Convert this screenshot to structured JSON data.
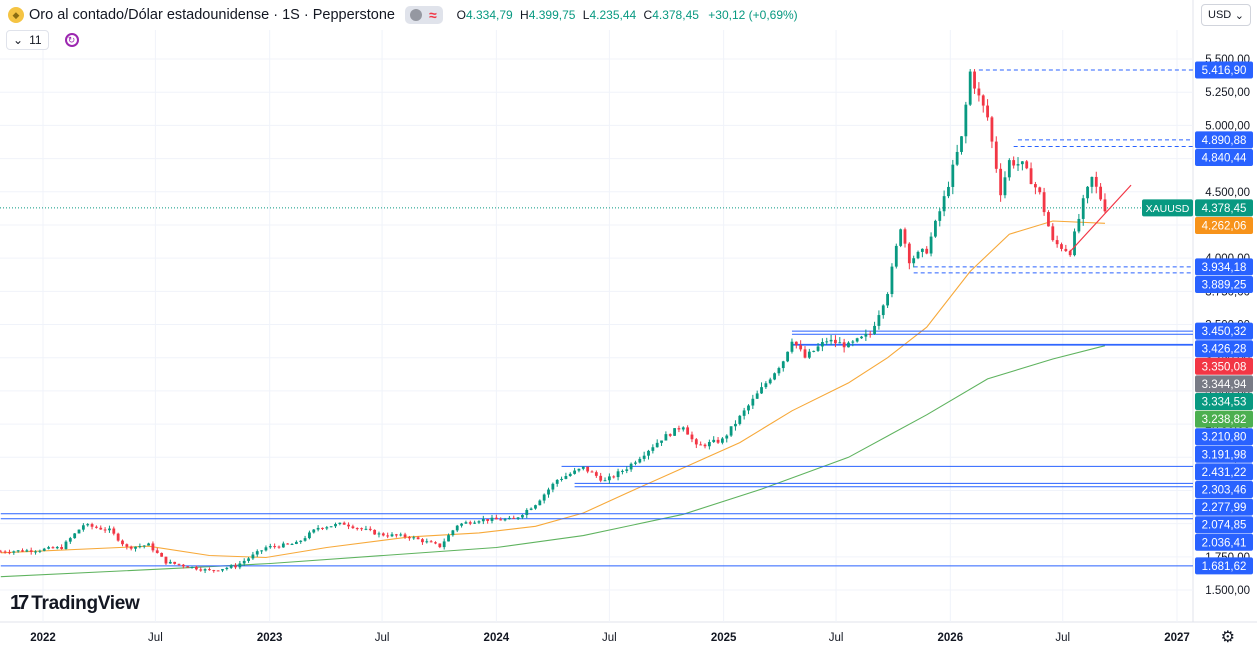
{
  "header": {
    "symbol_title": "Oro al contado/Dólar estadounidense · 1S · Pepperstone",
    "open_label": "O",
    "open": "4.334,79",
    "high_label": "H",
    "high": "4.399,75",
    "low_label": "L",
    "low": "4.235,44",
    "close_label": "C",
    "close": "4.378,45",
    "change": "+30,12 (+0,69%)",
    "indicators_count": "11",
    "currency": "USD"
  },
  "branding": {
    "logo_text": "TradingView"
  },
  "colors": {
    "up": "#089981",
    "down": "#f23645",
    "ema_short": "#f7a93a",
    "ema_long": "#5fb35f",
    "trend": "#f23645",
    "level": "#2962ff"
  },
  "chart_data": {
    "type": "candlestick",
    "title": "",
    "xlabel": "",
    "ylabel": "",
    "ylim": [
      1400,
      5600
    ],
    "x_range": [
      "2021-10-25",
      "2027-02-15"
    ],
    "grid": true,
    "y_ticks": [
      {
        "v": 5500,
        "label": "5.500,00"
      },
      {
        "v": 5250,
        "label": "5.250,00"
      },
      {
        "v": 5000,
        "label": "5.000,00"
      },
      {
        "v": 4750,
        "label": "4.750,00"
      },
      {
        "v": 4500,
        "label": "4.500,00"
      },
      {
        "v": 4250,
        "label": "4.250,00"
      },
      {
        "v": 4000,
        "label": "4.000,00"
      },
      {
        "v": 3750,
        "label": "3.750,00"
      },
      {
        "v": 3500,
        "label": "3.500,00"
      },
      {
        "v": 3250,
        "label": "3.250,00"
      },
      {
        "v": 3000,
        "label": "3.000,00"
      },
      {
        "v": 2750,
        "label": "2.750,00"
      },
      {
        "v": 2500,
        "label": "2.500,00"
      },
      {
        "v": 2250,
        "label": "2.250,00"
      },
      {
        "v": 2000,
        "label": "2.000,00"
      },
      {
        "v": 1750,
        "label": "1.750,00"
      },
      {
        "v": 1500,
        "label": "1.500,00"
      }
    ],
    "x_ticks": [
      {
        "date": "2022-01-01",
        "label": "2022",
        "bold": true
      },
      {
        "date": "2022-07-01",
        "label": "Jul",
        "bold": false
      },
      {
        "date": "2023-01-01",
        "label": "2023",
        "bold": true
      },
      {
        "date": "2023-07-01",
        "label": "Jul",
        "bold": false
      },
      {
        "date": "2024-01-01",
        "label": "2024",
        "bold": true
      },
      {
        "date": "2024-07-01",
        "label": "Jul",
        "bold": false
      },
      {
        "date": "2025-01-01",
        "label": "2025",
        "bold": true
      },
      {
        "date": "2025-07-01",
        "label": "Jul",
        "bold": false
      },
      {
        "date": "2026-01-01",
        "label": "2026",
        "bold": true
      },
      {
        "date": "2026-07-01",
        "label": "Jul",
        "bold": false
      },
      {
        "date": "2027-01-01",
        "label": "2027",
        "bold": true
      }
    ],
    "price_path": [
      [
        "2021-10-25",
        1790
      ],
      [
        "2021-12-20",
        1800
      ],
      [
        "2022-01-31",
        1820
      ],
      [
        "2022-03-07",
        1990
      ],
      [
        "2022-04-18",
        1950
      ],
      [
        "2022-05-16",
        1820
      ],
      [
        "2022-06-20",
        1840
      ],
      [
        "2022-07-18",
        1710
      ],
      [
        "2022-09-26",
        1645
      ],
      [
        "2022-11-07",
        1680
      ],
      [
        "2022-12-26",
        1820
      ],
      [
        "2023-02-13",
        1850
      ],
      [
        "2023-03-20",
        1970
      ],
      [
        "2023-05-01",
        2000
      ],
      [
        "2023-06-26",
        1920
      ],
      [
        "2023-08-14",
        1900
      ],
      [
        "2023-10-02",
        1830
      ],
      [
        "2023-10-30",
        1990
      ],
      [
        "2023-12-04",
        2030
      ],
      [
        "2024-01-29",
        2030
      ],
      [
        "2024-03-04",
        2150
      ],
      [
        "2024-04-08",
        2330
      ],
      [
        "2024-05-20",
        2420
      ],
      [
        "2024-06-24",
        2320
      ],
      [
        "2024-07-29",
        2420
      ],
      [
        "2024-09-23",
        2640
      ],
      [
        "2024-10-28",
        2740
      ],
      [
        "2024-11-18",
        2580
      ],
      [
        "2024-12-30",
        2630
      ],
      [
        "2025-02-17",
        2930
      ],
      [
        "2025-04-07",
        3230
      ],
      [
        "2025-04-21",
        3390
      ],
      [
        "2025-05-12",
        3250
      ],
      [
        "2025-06-16",
        3380
      ],
      [
        "2025-07-21",
        3340
      ],
      [
        "2025-08-25",
        3430
      ],
      [
        "2025-09-22",
        3750
      ],
      [
        "2025-10-13",
        4240
      ],
      [
        "2025-10-27",
        3990
      ],
      [
        "2025-11-24",
        4060
      ],
      [
        "2025-12-22",
        4450
      ],
      [
        "2026-01-19",
        4900
      ],
      [
        "2026-02-02",
        5400
      ],
      [
        "2026-02-16",
        5210
      ],
      [
        "2026-03-02",
        5060
      ],
      [
        "2026-03-23",
        4500
      ],
      [
        "2026-04-06",
        4730
      ],
      [
        "2026-04-27",
        4700
      ],
      [
        "2026-05-25",
        4480
      ],
      [
        "2026-06-15",
        4120
      ],
      [
        "2026-07-13",
        4050
      ],
      [
        "2026-08-03",
        4420
      ],
      [
        "2026-08-17",
        4600
      ],
      [
        "2026-09-07",
        4378
      ]
    ],
    "ema_short": [
      [
        "2021-10-25",
        1780
      ],
      [
        "2022-06-20",
        1830
      ],
      [
        "2022-09-26",
        1760
      ],
      [
        "2022-12-26",
        1745
      ],
      [
        "2023-04-03",
        1820
      ],
      [
        "2023-08-14",
        1900
      ],
      [
        "2023-12-04",
        1930
      ],
      [
        "2024-03-04",
        1980
      ],
      [
        "2024-05-20",
        2080
      ],
      [
        "2024-07-29",
        2230
      ],
      [
        "2024-10-28",
        2420
      ],
      [
        "2025-01-27",
        2610
      ],
      [
        "2025-04-21",
        2850
      ],
      [
        "2025-07-21",
        3060
      ],
      [
        "2025-09-22",
        3250
      ],
      [
        "2025-11-24",
        3480
      ],
      [
        "2026-02-02",
        3900
      ],
      [
        "2026-04-06",
        4180
      ],
      [
        "2026-06-15",
        4280
      ],
      [
        "2026-09-07",
        4262
      ]
    ],
    "ema_long": [
      [
        "2021-10-25",
        1600
      ],
      [
        "2022-07-18",
        1660
      ],
      [
        "2023-01-02",
        1700
      ],
      [
        "2023-07-03",
        1760
      ],
      [
        "2024-01-01",
        1820
      ],
      [
        "2024-05-20",
        1910
      ],
      [
        "2024-10-28",
        2070
      ],
      [
        "2025-03-03",
        2260
      ],
      [
        "2025-07-21",
        2500
      ],
      [
        "2025-11-24",
        2820
      ],
      [
        "2026-03-02",
        3090
      ],
      [
        "2026-06-15",
        3240
      ],
      [
        "2026-09-07",
        3340
      ]
    ],
    "trendline": [
      [
        "2026-07-13",
        4050
      ],
      [
        "2026-10-19",
        4550
      ]
    ],
    "current_price": 4378.45,
    "horizontal_levels": [
      {
        "value": 5416.9,
        "style": "dashed",
        "from": "2026-02-16"
      },
      {
        "value": 4890.88,
        "style": "dashed",
        "from": "2026-04-20"
      },
      {
        "value": 4840.44,
        "style": "dashed",
        "from": "2026-04-13"
      },
      {
        "value": 3934.18,
        "style": "dashed",
        "from": "2025-11-03"
      },
      {
        "value": 3889.25,
        "style": "dashed",
        "from": "2025-11-03"
      },
      {
        "value": 3450.32,
        "style": "solid",
        "from": "2025-04-21"
      },
      {
        "value": 3426.28,
        "style": "solid",
        "from": "2025-04-21"
      },
      {
        "value": 3350.08,
        "style": "solid",
        "from": "2025-04-21"
      },
      {
        "value": 3344.94,
        "style": "solid",
        "from": "2025-04-21"
      },
      {
        "value": 2431.22,
        "style": "solid",
        "from": "2024-04-15"
      },
      {
        "value": 2303.46,
        "style": "solid",
        "from": "2024-05-06"
      },
      {
        "value": 2277.99,
        "style": "solid",
        "from": "2024-05-06"
      },
      {
        "value": 2074.85,
        "style": "solid",
        "from": "2021-10-25"
      },
      {
        "value": 2036.41,
        "style": "solid",
        "from": "2021-10-25"
      },
      {
        "value": 1681.62,
        "style": "solid",
        "from": "2021-10-25"
      }
    ],
    "price_labels": [
      {
        "text": "5.416,90",
        "value": 5416.9,
        "color": "#2962ff"
      },
      {
        "text": "4.890,88",
        "value": 4890.88,
        "color": "#2962ff"
      },
      {
        "text": "4.840,44",
        "value": 4840.44,
        "color": "#2962ff"
      },
      {
        "text": "4.378,45",
        "value": 4378.45,
        "color": "#089981",
        "tag": "XAUUSD"
      },
      {
        "text": "4.262,06",
        "value": 4262.06,
        "color": "#f7931a"
      },
      {
        "text": "3.934,18",
        "value": 3934.18,
        "color": "#2962ff"
      },
      {
        "text": "3.889,25",
        "value": 3889.25,
        "color": "#2962ff"
      },
      {
        "text": "3.450,32",
        "value": 3450.32,
        "color": "#2962ff"
      },
      {
        "text": "3.426,28",
        "value": 3426.28,
        "color": "#2962ff"
      },
      {
        "text": "3.350,08",
        "value": 3350.08,
        "color": "#f23645"
      },
      {
        "text": "3.344,94",
        "value": 3344.94,
        "color": "#787b86"
      },
      {
        "text": "3.334,53",
        "value": 3334.53,
        "color": "#089981"
      },
      {
        "text": "3.238,82",
        "value": 3238.82,
        "color": "#4caf50"
      },
      {
        "text": "3.210,80",
        "value": 3210.8,
        "color": "#2962ff"
      },
      {
        "text": "3.191,98",
        "value": 3191.98,
        "color": "#2962ff"
      },
      {
        "text": "2.431,22",
        "value": 2431.22,
        "color": "#2962ff"
      },
      {
        "text": "2.303,46",
        "value": 2303.46,
        "color": "#2962ff"
      },
      {
        "text": "2.277,99",
        "value": 2277.99,
        "color": "#2962ff"
      },
      {
        "text": "2.074,85",
        "value": 2074.85,
        "color": "#2962ff"
      },
      {
        "text": "2.036,41",
        "value": 2036.41,
        "color": "#2962ff"
      },
      {
        "text": "1.681,62",
        "value": 1681.62,
        "color": "#2962ff"
      }
    ]
  }
}
